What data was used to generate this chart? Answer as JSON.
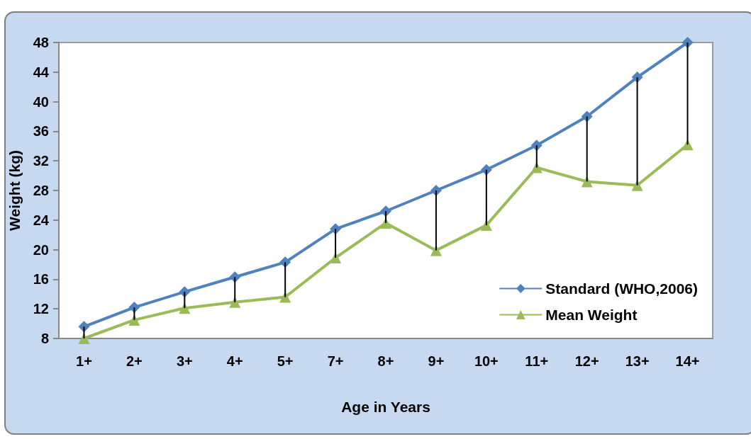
{
  "chart_data": {
    "type": "line",
    "xlabel": "Age in Years",
    "ylabel": "Weight (kg)",
    "categories": [
      "1+",
      "2+",
      "3+",
      "4+",
      "5+",
      "7+",
      "8+",
      "9+",
      "10+",
      "11+",
      "12+",
      "13+",
      "14+"
    ],
    "series": [
      {
        "name": "Standard (WHO,2006)",
        "color": "#4f81bd",
        "marker": "diamond",
        "values": [
          9.6,
          12.2,
          14.3,
          16.3,
          18.3,
          22.8,
          25.2,
          28.0,
          30.8,
          34.1,
          38.0,
          43.3,
          48.0
        ]
      },
      {
        "name": "Mean Weight",
        "color": "#9bbb59",
        "marker": "triangle",
        "values": [
          8.0,
          10.5,
          12.1,
          12.9,
          13.6,
          18.9,
          23.6,
          19.9,
          23.3,
          31.1,
          29.2,
          28.7,
          34.2
        ],
        "errors": [
          [
            8.0,
            9.6
          ],
          [
            10.5,
            12.2
          ],
          [
            12.1,
            14.3
          ],
          [
            12.9,
            16.3
          ],
          [
            13.6,
            18.3
          ],
          [
            18.9,
            22.8
          ],
          [
            23.6,
            25.2
          ],
          [
            19.9,
            28.0
          ],
          [
            23.3,
            30.8
          ],
          [
            31.1,
            34.1
          ],
          [
            29.2,
            38.0
          ],
          [
            28.7,
            43.3
          ],
          [
            34.2,
            48.0
          ]
        ]
      }
    ],
    "ylim": [
      8,
      48
    ],
    "yticks": [
      8,
      12,
      16,
      20,
      24,
      28,
      32,
      36,
      40,
      44,
      48
    ],
    "grid": false,
    "legend": "bottom right"
  }
}
